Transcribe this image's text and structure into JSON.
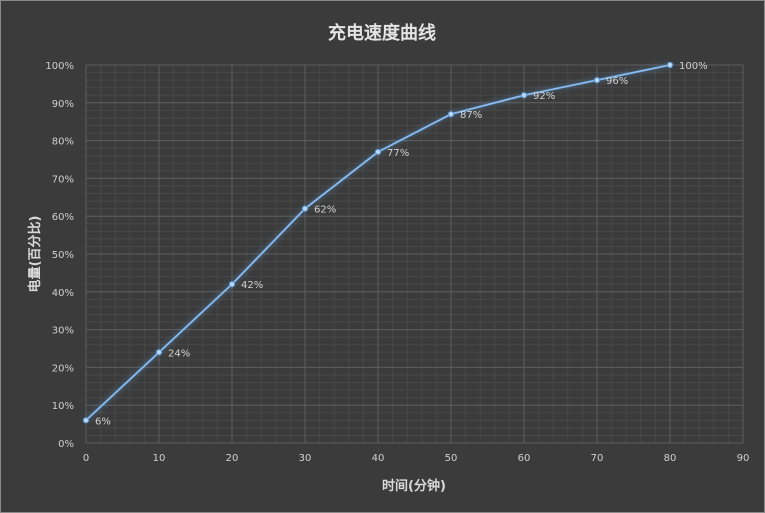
{
  "chart_data": {
    "type": "line",
    "title": "充电速度曲线",
    "xlabel": "时间(分钟)",
    "ylabel": "电量(百分比)",
    "xlim": [
      0,
      90
    ],
    "ylim": [
      0,
      100
    ],
    "x_ticks": [
      0,
      10,
      20,
      30,
      40,
      50,
      60,
      70,
      80,
      90
    ],
    "x_tick_labels": [
      "0",
      "10",
      "20",
      "30",
      "40",
      "50",
      "60",
      "70",
      "80",
      "90"
    ],
    "y_ticks": [
      0,
      10,
      20,
      30,
      40,
      50,
      60,
      70,
      80,
      90,
      100
    ],
    "y_tick_labels": [
      "0%",
      "10%",
      "20%",
      "30%",
      "40%",
      "50%",
      "60%",
      "70%",
      "80%",
      "90%",
      "100%"
    ],
    "grid": true,
    "legend": "none",
    "series": [
      {
        "x": [
          0,
          10,
          20,
          30,
          40,
          50,
          60,
          70,
          80
        ],
        "values": [
          6,
          24,
          42,
          62,
          77,
          87,
          92,
          96,
          100
        ],
        "labels": [
          "6%",
          "24%",
          "42%",
          "62%",
          "77%",
          "87%",
          "92%",
          "96%",
          "100%"
        ],
        "color": "#5b9bd5"
      }
    ]
  }
}
